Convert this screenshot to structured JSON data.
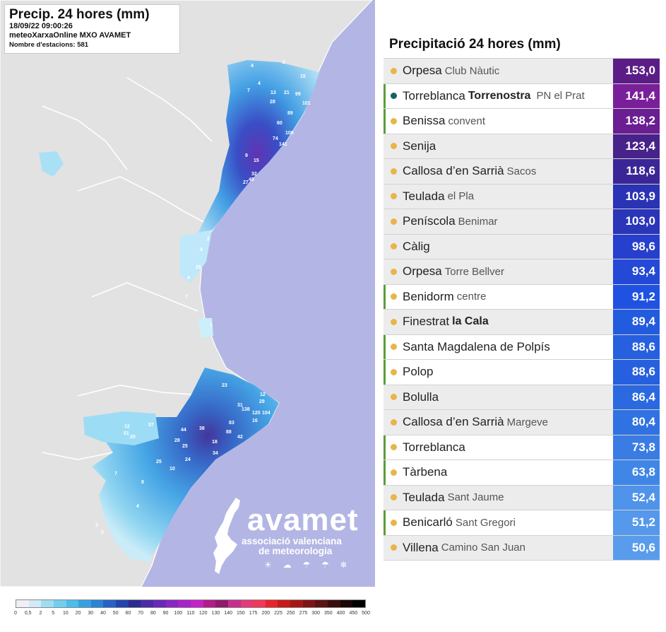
{
  "map": {
    "title": "Precip. 24 hores (mm)",
    "datetime": "18/09/22 09:00:26",
    "network": "meteoXarxaOnline MXO AVAMET",
    "stations": "Nombre d'estacions: 581",
    "station_labels": [
      {
        "t": "2"
      },
      {
        "t": "4"
      },
      {
        "t": "15"
      },
      {
        "t": "21"
      },
      {
        "t": "99"
      },
      {
        "t": "101"
      },
      {
        "t": "89"
      },
      {
        "t": "60"
      },
      {
        "t": "74"
      },
      {
        "t": "141"
      },
      {
        "t": "109"
      },
      {
        "t": "32"
      },
      {
        "t": "27"
      },
      {
        "t": "15"
      },
      {
        "t": "9"
      },
      {
        "t": "7"
      },
      {
        "t": "4"
      },
      {
        "t": "28"
      },
      {
        "t": "13"
      },
      {
        "t": "45"
      },
      {
        "t": "2"
      },
      {
        "t": "4"
      },
      {
        "t": "29"
      },
      {
        "t": "7"
      },
      {
        "t": "4"
      },
      {
        "t": "1"
      },
      {
        "t": "25"
      },
      {
        "t": "29"
      },
      {
        "t": "12"
      },
      {
        "t": "31"
      },
      {
        "t": "23"
      },
      {
        "t": "120"
      },
      {
        "t": "104"
      },
      {
        "t": "138"
      },
      {
        "t": "83"
      },
      {
        "t": "88"
      },
      {
        "t": "42"
      },
      {
        "t": "16"
      },
      {
        "t": "57"
      },
      {
        "t": "20"
      },
      {
        "t": "12"
      },
      {
        "t": "51"
      },
      {
        "t": "28"
      },
      {
        "t": "44"
      },
      {
        "t": "38"
      },
      {
        "t": "25"
      },
      {
        "t": "34"
      },
      {
        "t": "18"
      },
      {
        "t": "24"
      },
      {
        "t": "10"
      },
      {
        "t": "4"
      },
      {
        "t": "7"
      },
      {
        "t": "2"
      },
      {
        "t": "8"
      },
      {
        "t": "3"
      }
    ]
  },
  "logo": {
    "word": "avamet",
    "tag1": "associació valenciana",
    "tag2": "de meteorologia",
    "icons": "☀ ☁ ☂ ☂ ❄"
  },
  "legend": {
    "colors": [
      "#efeff5",
      "#d2eaf7",
      "#9fdcf3",
      "#6fcff0",
      "#4bbceb",
      "#36a1e2",
      "#2a84d6",
      "#2563c7",
      "#2343ad",
      "#2a2a8f",
      "#4a2aa6",
      "#6b27b8",
      "#8b25c4",
      "#a823c8",
      "#c323c6",
      "#b01c8a",
      "#8e1a6a",
      "#c52f8e",
      "#e33a7a",
      "#f0385a",
      "#e8232f",
      "#c81a1a",
      "#a71616",
      "#7f1414",
      "#5a1212",
      "#3a0d0d",
      "#1a0606",
      "#000000"
    ],
    "ticks": [
      "0",
      "0,5",
      "2",
      "5",
      "10",
      "20",
      "30",
      "40",
      "50",
      "60",
      "70",
      "80",
      "90",
      "100",
      "110",
      "120",
      "130",
      "140",
      "150",
      "175",
      "200",
      "225",
      "250",
      "275",
      "300",
      "350",
      "400",
      "450",
      "500"
    ]
  },
  "ranking": {
    "title": "Precipitació 24 hores (mm)",
    "rows": [
      {
        "name": "Orpesa",
        "sub": "Club Nàutic",
        "value": "153,0",
        "color": "#5b1d85",
        "bar": false,
        "bg": "grey",
        "dot": "#e8b54a"
      },
      {
        "name": "Torreblanca",
        "sub": "Torrenostra",
        "sub2": "PN el Prat",
        "value": "141,4",
        "color": "#7a1f9a",
        "bar": true,
        "bg": "white",
        "dot": "#16625e"
      },
      {
        "name": "Benissa",
        "sub": "convent",
        "value": "138,2",
        "color": "#6a1e92",
        "bar": true,
        "bg": "white",
        "dot": "#e8b54a"
      },
      {
        "name": "Senija",
        "sub": "",
        "value": "123,4",
        "color": "#47228a",
        "bar": false,
        "bg": "grey",
        "dot": "#e8b54a"
      },
      {
        "name": "Callosa d’en Sarrià",
        "sub": "Sacos",
        "value": "118,6",
        "color": "#3a2696",
        "bar": false,
        "bg": "grey",
        "dot": "#e8b54a"
      },
      {
        "name": "Teulada",
        "sub": "el Pla",
        "value": "103,9",
        "color": "#2a33b4",
        "bar": false,
        "bg": "grey",
        "dot": "#e8b54a"
      },
      {
        "name": "Peníscola",
        "sub": "Benimar",
        "value": "103,0",
        "color": "#2a35b8",
        "bar": false,
        "bg": "grey",
        "dot": "#e8b54a"
      },
      {
        "name": "Càlig",
        "sub": "",
        "value": "98,6",
        "color": "#263fcc",
        "bar": false,
        "bg": "grey",
        "dot": "#e8b54a"
      },
      {
        "name": "Orpesa",
        "sub": "Torre Bellver",
        "value": "93,4",
        "color": "#2349d6",
        "bar": false,
        "bg": "grey",
        "dot": "#e8b54a"
      },
      {
        "name": "Benidorm",
        "sub": "centre",
        "value": "91,2",
        "color": "#2052e2",
        "bar": true,
        "bg": "white",
        "dot": "#e8b54a"
      },
      {
        "name": "Finestrat",
        "sub": "la Cala",
        "value": "89,4",
        "color": "#235bde",
        "bar": false,
        "bg": "grey",
        "dot": "#e8b54a",
        "subBold": true
      },
      {
        "name": "Santa Magdalena de Polpís",
        "sub": "",
        "value": "88,6",
        "color": "#2660de",
        "bar": true,
        "bg": "white",
        "dot": "#e8b54a"
      },
      {
        "name": "Polop",
        "sub": "",
        "value": "88,6",
        "color": "#2660de",
        "bar": true,
        "bg": "white",
        "dot": "#e8b54a"
      },
      {
        "name": "Bolulla",
        "sub": "",
        "value": "86,4",
        "color": "#2a69e0",
        "bar": false,
        "bg": "grey",
        "dot": "#e8b54a"
      },
      {
        "name": "Callosa d’en Sarrià",
        "sub": "Margeve",
        "value": "80,4",
        "color": "#3072e2",
        "bar": false,
        "bg": "grey",
        "dot": "#e8b54a"
      },
      {
        "name": "Torreblanca",
        "sub": "",
        "value": "73,8",
        "color": "#3a7ce4",
        "bar": true,
        "bg": "white",
        "dot": "#e8b54a"
      },
      {
        "name": "Tàrbena",
        "sub": "",
        "value": "63,8",
        "color": "#3f86e6",
        "bar": true,
        "bg": "white",
        "dot": "#e8b54a"
      },
      {
        "name": "Teulada",
        "sub": "Sant Jaume",
        "value": "52,4",
        "color": "#4f93ea",
        "bar": false,
        "bg": "grey",
        "dot": "#e8b54a"
      },
      {
        "name": "Benicarló",
        "sub": "Sant Gregori",
        "value": "51,2",
        "color": "#5598ec",
        "bar": true,
        "bg": "white",
        "dot": "#e8b54a"
      },
      {
        "name": "Villena",
        "sub": "Camino San Juan",
        "value": "50,6",
        "color": "#5a9cec",
        "bar": false,
        "bg": "grey",
        "dot": "#e8b54a"
      }
    ]
  }
}
